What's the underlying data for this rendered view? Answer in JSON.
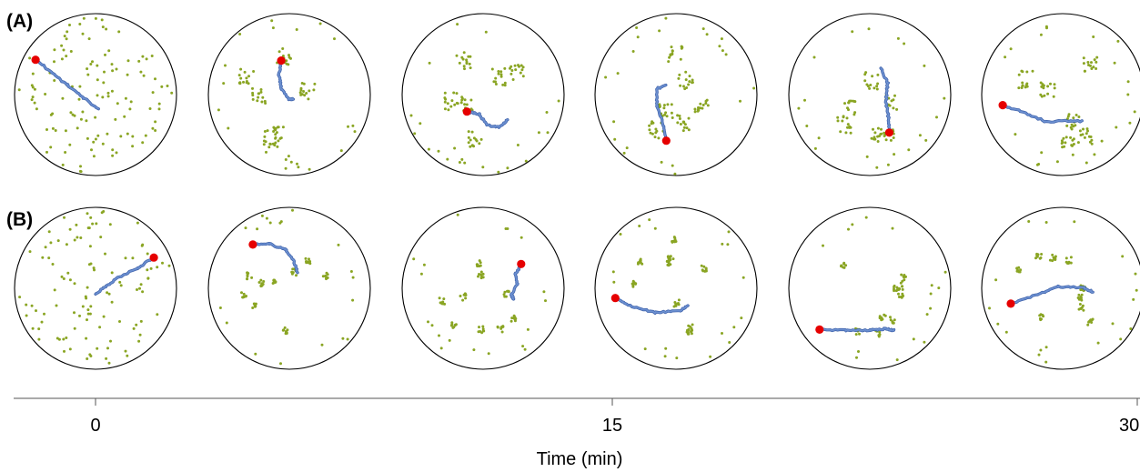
{
  "rows": [
    {
      "label": "(A)",
      "panels": [
        {
          "seed": 11,
          "dots": 120,
          "spread": "uniform",
          "track": [
            [
              -0.74,
              -0.43
            ],
            [
              -0.55,
              -0.28
            ],
            [
              -0.35,
              -0.12
            ],
            [
              -0.15,
              0.04
            ],
            [
              0.03,
              0.17
            ]
          ],
          "head": "start"
        },
        {
          "seed": 23,
          "dots": 110,
          "spread": "clusters",
          "track": [
            [
              -0.1,
              -0.42
            ],
            [
              -0.13,
              -0.24
            ],
            [
              -0.1,
              -0.08
            ],
            [
              0.0,
              0.06
            ],
            [
              0.05,
              0.05
            ]
          ],
          "head": "start"
        },
        {
          "seed": 37,
          "dots": 110,
          "spread": "clusters",
          "track": [
            [
              -0.2,
              0.21
            ],
            [
              -0.05,
              0.24
            ],
            [
              0.05,
              0.38
            ],
            [
              0.2,
              0.4
            ],
            [
              0.3,
              0.32
            ]
          ],
          "head": "start"
        },
        {
          "seed": 41,
          "dots": 110,
          "spread": "clusters",
          "track": [
            [
              -0.12,
              -0.12
            ],
            [
              -0.24,
              -0.07
            ],
            [
              -0.23,
              0.15
            ],
            [
              -0.15,
              0.38
            ],
            [
              -0.12,
              0.57
            ]
          ],
          "head": "end"
        },
        {
          "seed": 53,
          "dots": 100,
          "spread": "clusters",
          "track": [
            [
              0.14,
              -0.33
            ],
            [
              0.22,
              -0.14
            ],
            [
              0.2,
              0.1
            ],
            [
              0.23,
              0.28
            ],
            [
              0.24,
              0.47
            ]
          ],
          "head": "end"
        },
        {
          "seed": 67,
          "dots": 110,
          "spread": "clusters",
          "track": [
            [
              -0.74,
              0.13
            ],
            [
              -0.46,
              0.23
            ],
            [
              -0.2,
              0.34
            ],
            [
              0.1,
              0.32
            ],
            [
              0.24,
              0.33
            ]
          ],
          "head": "start"
        }
      ]
    },
    {
      "label": "(B)",
      "panels": [
        {
          "seed": 71,
          "dots": 110,
          "spread": "uniform",
          "track": [
            [
              0.72,
              -0.38
            ],
            [
              0.52,
              -0.25
            ],
            [
              0.28,
              -0.13
            ],
            [
              0.12,
              -0.02
            ],
            [
              0.0,
              0.08
            ]
          ],
          "head": "start"
        },
        {
          "seed": 83,
          "dots": 95,
          "spread": "patches",
          "track": [
            [
              -0.45,
              -0.54
            ],
            [
              -0.25,
              -0.55
            ],
            [
              -0.05,
              -0.48
            ],
            [
              0.05,
              -0.35
            ],
            [
              0.1,
              -0.2
            ]
          ],
          "head": "start"
        },
        {
          "seed": 97,
          "dots": 95,
          "spread": "patches",
          "track": [
            [
              0.47,
              -0.3
            ],
            [
              0.4,
              -0.18
            ],
            [
              0.42,
              -0.05
            ],
            [
              0.35,
              0.08
            ],
            [
              0.38,
              0.14
            ]
          ],
          "head": "start"
        },
        {
          "seed": 101,
          "dots": 95,
          "spread": "patches",
          "track": [
            [
              -0.75,
              0.12
            ],
            [
              -0.55,
              0.22
            ],
            [
              -0.25,
              0.3
            ],
            [
              0.05,
              0.28
            ],
            [
              0.15,
              0.22
            ]
          ],
          "head": "start"
        },
        {
          "seed": 113,
          "dots": 80,
          "spread": "patches",
          "track": [
            [
              -0.62,
              0.51
            ],
            [
              -0.3,
              0.52
            ],
            [
              0.0,
              0.52
            ],
            [
              0.2,
              0.5
            ],
            [
              0.3,
              0.52
            ]
          ],
          "head": "start"
        },
        {
          "seed": 127,
          "dots": 95,
          "spread": "patches",
          "track": [
            [
              -0.64,
              0.19
            ],
            [
              -0.3,
              0.07
            ],
            [
              -0.05,
              -0.02
            ],
            [
              0.25,
              -0.01
            ],
            [
              0.38,
              0.05
            ]
          ],
          "head": "start"
        }
      ]
    }
  ],
  "axis": {
    "ticks": [
      "0",
      "15",
      "30"
    ],
    "title": "Time (min)"
  },
  "colors": {
    "dot": "#8aa523",
    "track": "#6b8fd0",
    "track_outline": "#3a5ea8",
    "head": "#e60000",
    "circle": "#000000",
    "axis": "#555555"
  }
}
